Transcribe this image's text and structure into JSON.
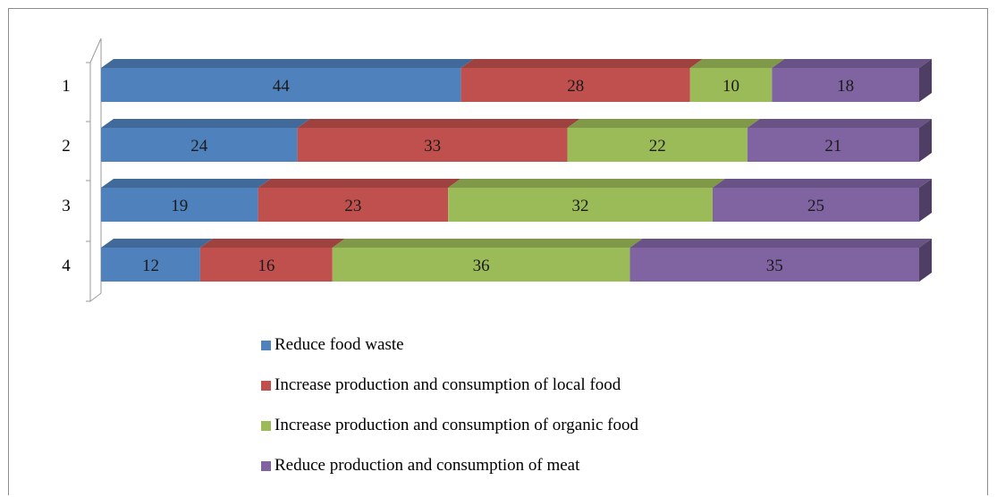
{
  "chart_data": {
    "type": "bar",
    "orientation": "horizontal",
    "stacked": true,
    "percent_stacked": true,
    "style": "3d",
    "categories": [
      "1",
      "2",
      "3",
      "4"
    ],
    "series": [
      {
        "name": "Reduce food waste",
        "values": [
          44,
          24,
          19,
          12
        ],
        "color": "#4f81bd"
      },
      {
        "name": "Increase production and consumption of local food",
        "values": [
          28,
          33,
          23,
          16
        ],
        "color": "#c0504d"
      },
      {
        "name": "Increase production and consumption of organic food",
        "values": [
          10,
          22,
          32,
          36
        ],
        "color": "#9bbb59"
      },
      {
        "name": "Reduce production and consumption of meat",
        "values": [
          18,
          21,
          25,
          35
        ],
        "color": "#8064a2"
      }
    ],
    "data_labels": true,
    "grid": false,
    "legend_position": "bottom"
  }
}
